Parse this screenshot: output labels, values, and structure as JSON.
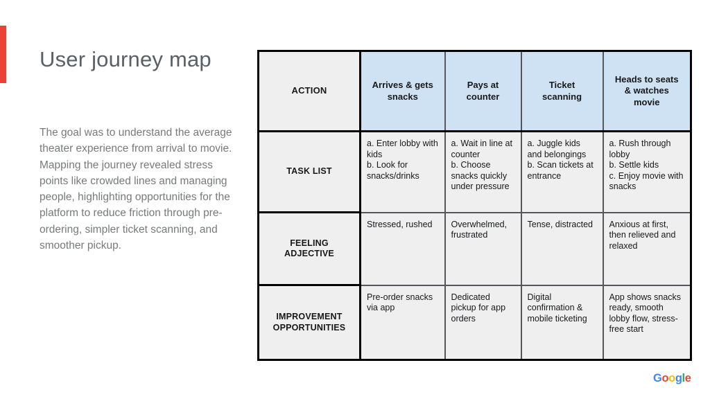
{
  "accent": {
    "color": "#EA4335"
  },
  "slide": {
    "title": "User journey map",
    "description": "The goal was to understand the average theater experience from arrival to movie. Mapping the journey revealed stress points like crowded lines and managing people, highlighting opportunities for the platform to reduce friction through pre-ordering, simpler ticket scanning, and smoother pickup."
  },
  "journey_table": {
    "header_bg": "#cfe2f3",
    "cell_bg": "#efefef",
    "rows": [
      {
        "label": "ACTION",
        "cells": [
          "Arrives & gets snacks",
          "Pays at counter",
          "Ticket scanning",
          "Heads to seats & watches movie"
        ]
      },
      {
        "label": "TASK LIST",
        "cells": [
          "a. Enter lobby with kids\nb. Look for snacks/drinks",
          "a. Wait in line at counter\nb. Choose snacks quickly under pressure",
          "a. Juggle kids and belongings\nb. Scan tickets at entrance",
          "a. Rush through lobby\nb. Settle kids\nc. Enjoy movie with snacks"
        ]
      },
      {
        "label": "FEELING ADJECTIVE",
        "cells": [
          "Stressed, rushed",
          "Overwhelmed, frustrated",
          "Tense, distracted",
          "Anxious at first, then relieved and relaxed"
        ]
      },
      {
        "label": "IMPROVEMENT OPPORTUNITIES",
        "cells": [
          "Pre-order snacks via app",
          "Dedicated pickup for app orders",
          "Digital confirmation & mobile ticketing",
          "App shows snacks ready, smooth lobby flow, stress-free start"
        ]
      }
    ]
  },
  "footer": {
    "logo": [
      {
        "char": "G",
        "color": "#4285F4"
      },
      {
        "char": "o",
        "color": "#EA4335"
      },
      {
        "char": "o",
        "color": "#FBBC04"
      },
      {
        "char": "g",
        "color": "#4285F4"
      },
      {
        "char": "l",
        "color": "#34A853"
      },
      {
        "char": "e",
        "color": "#EA4335"
      }
    ]
  }
}
